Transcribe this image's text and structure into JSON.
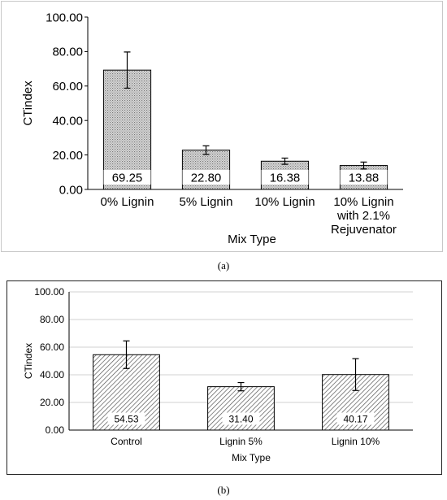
{
  "chart_data": [
    {
      "type": "bar",
      "caption": "(a)",
      "categories": [
        [
          "0% Lignin"
        ],
        [
          "5% Lignin"
        ],
        [
          "10% Lignin"
        ],
        [
          "10% Lignin",
          "with 2.1%",
          "Rejuvenator"
        ]
      ],
      "values": [
        69.25,
        22.8,
        16.38,
        13.88
      ],
      "value_labels": [
        "69.25",
        "22.80",
        "16.38",
        "13.88"
      ],
      "error_bars": [
        10.5,
        2.5,
        1.8,
        2.0
      ],
      "xlabel": "Mix Type",
      "ylabel": "CTindex",
      "ylim": [
        0,
        100
      ],
      "yticks": [
        "0.00",
        "20.00",
        "40.00",
        "60.00",
        "80.00",
        "100.00"
      ],
      "grid": false,
      "bar_fill": "dotted-gray"
    },
    {
      "type": "bar",
      "caption": "(b)",
      "categories": [
        [
          "Control"
        ],
        [
          "Lignin 5%"
        ],
        [
          "Lignin 10%"
        ]
      ],
      "values": [
        54.53,
        31.4,
        40.17
      ],
      "value_labels": [
        "54.53",
        "31.40",
        "40.17"
      ],
      "error_bars": [
        10.0,
        3.0,
        11.5
      ],
      "xlabel": "Mix Type",
      "ylabel": "CTindex",
      "ylim": [
        0,
        100
      ],
      "yticks": [
        "0.00",
        "20.00",
        "40.00",
        "60.00",
        "80.00",
        "100.00"
      ],
      "grid": true,
      "bar_fill": "diagonal-hatch"
    }
  ]
}
